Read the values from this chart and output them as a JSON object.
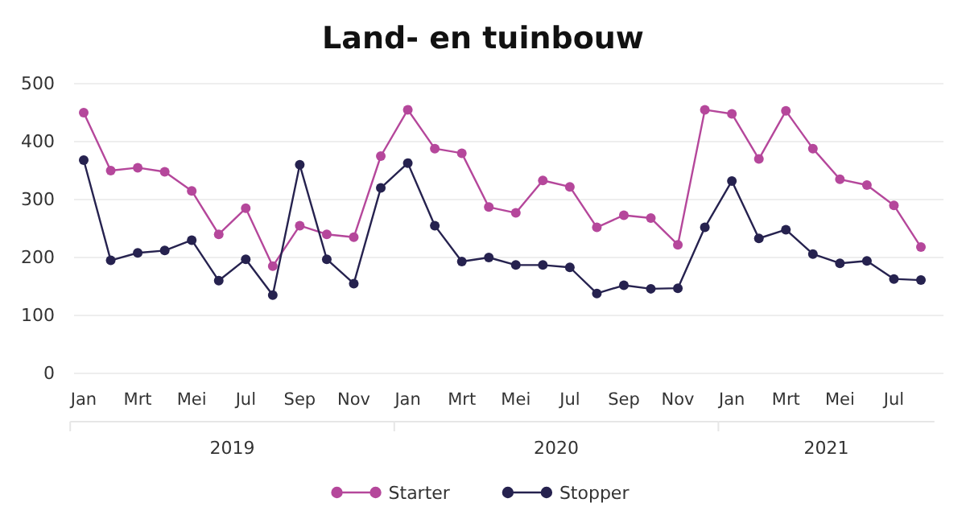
{
  "chart_data": {
    "type": "line",
    "title": "Land- en tuinbouw",
    "categories": [
      "Jan",
      null,
      "Mrt",
      null,
      "Mei",
      null,
      "Jul",
      null,
      "Sep",
      null,
      "Nov",
      null,
      "Jan",
      null,
      "Mrt",
      null,
      "Mei",
      null,
      "Jul",
      null,
      "Sep",
      null,
      "Nov",
      null,
      "Jan",
      null,
      "Mrt",
      null,
      "Mei",
      null,
      "Jul",
      null
    ],
    "annotations": [
      "2019",
      "2020",
      "2021"
    ],
    "series": [
      {
        "name": "Starter",
        "color": "#b5479b",
        "values": [
          450,
          350,
          355,
          348,
          315,
          240,
          285,
          185,
          255,
          240,
          235,
          375,
          455,
          388,
          380,
          287,
          277,
          333,
          322,
          252,
          273,
          268,
          222,
          455,
          448,
          370,
          453,
          388,
          335,
          325,
          290,
          218
        ]
      },
      {
        "name": "Stopper",
        "color": "#26224f",
        "values": [
          368,
          195,
          208,
          212,
          230,
          160,
          197,
          135,
          360,
          197,
          155,
          320,
          363,
          255,
          193,
          200,
          187,
          187,
          183,
          138,
          152,
          146,
          147,
          252,
          332,
          233,
          248,
          206,
          190,
          194,
          163,
          161
        ]
      }
    ],
    "ylim": [
      0,
      500
    ],
    "yticks": [
      0,
      100,
      200,
      300,
      400,
      500
    ],
    "grid": "y",
    "legend": "bottom",
    "marker": "circle",
    "line_style": "solid"
  }
}
